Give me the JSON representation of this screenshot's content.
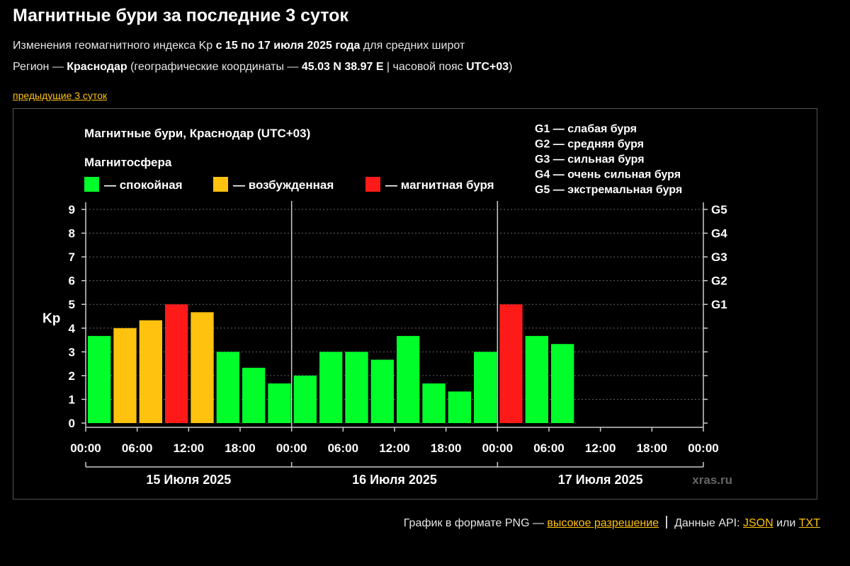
{
  "header": {
    "title": "Магнитные бури за последние 3 суток",
    "line1_pre": "Изменения геомагнитного индекса Kp ",
    "line1_bold": "с 15 по 17 июля 2025 года",
    "line1_post": " для средних широт",
    "line2_pre": "Регион — ",
    "line2_region": "Краснодар",
    "line2_mid": " (географические координаты — ",
    "line2_coords": "45.03 N 38.97 E",
    "line2_mid2": " | часовой пояс ",
    "line2_tz": "UTC+03",
    "line2_post": ")",
    "prev_link": "предыдущие 3 суток"
  },
  "chart_data": {
    "type": "bar",
    "title": "Магнитные бури, Краснодар (UTC+03)",
    "ylabel": "Kp",
    "ylim": [
      0,
      9
    ],
    "yticks": [
      "0",
      "1",
      "2",
      "3",
      "4",
      "5",
      "6",
      "7",
      "8",
      "9"
    ],
    "right_ticks": [
      {
        "value": 5,
        "label": "G1"
      },
      {
        "value": 6,
        "label": "G2"
      },
      {
        "value": 7,
        "label": "G3"
      },
      {
        "value": 8,
        "label": "G4"
      },
      {
        "value": 9,
        "label": "G5"
      }
    ],
    "x_tick_labels": [
      "00:00",
      "06:00",
      "12:00",
      "18:00",
      "00:00",
      "06:00",
      "12:00",
      "18:00",
      "00:00",
      "06:00",
      "12:00",
      "18:00",
      "00:00"
    ],
    "days": [
      "15 Июля 2025",
      "16 Июля 2025",
      "17 Июля 2025"
    ],
    "legend_title": "Магнитосфера",
    "legend": [
      {
        "label": "— спокойная",
        "color": "#00ff2a"
      },
      {
        "label": "— возбужденная",
        "color": "#ffc20e"
      },
      {
        "label": "— магнитная буря",
        "color": "#ff1a1a"
      }
    ],
    "storm_levels": [
      "G1 — слабая буря",
      "G2 — средняя буря",
      "G3 — сильная буря",
      "G4 — очень сильная буря",
      "G5 — экстремальная буря"
    ],
    "values": [
      3.67,
      4.0,
      4.33,
      5.0,
      4.67,
      3.0,
      2.33,
      1.67,
      2.0,
      3.0,
      3.0,
      2.67,
      3.67,
      1.67,
      1.33,
      3.0,
      5.0,
      3.67,
      3.33
    ],
    "states": [
      "calm",
      "active",
      "active",
      "storm",
      "active",
      "calm",
      "calm",
      "calm",
      "calm",
      "calm",
      "calm",
      "calm",
      "calm",
      "calm",
      "calm",
      "calm",
      "storm",
      "calm",
      "calm"
    ],
    "state_colors": {
      "calm": "#00ff2a",
      "active": "#ffc20e",
      "storm": "#ff1a1a"
    },
    "grid": true,
    "watermark": "xras.ru"
  },
  "footer": {
    "png_text": "График в формате PNG — ",
    "png_link": "высокое разрешение",
    "api_text": "Данные API: ",
    "json_link": "JSON",
    "or_text": " или ",
    "txt_link": "TXT"
  }
}
